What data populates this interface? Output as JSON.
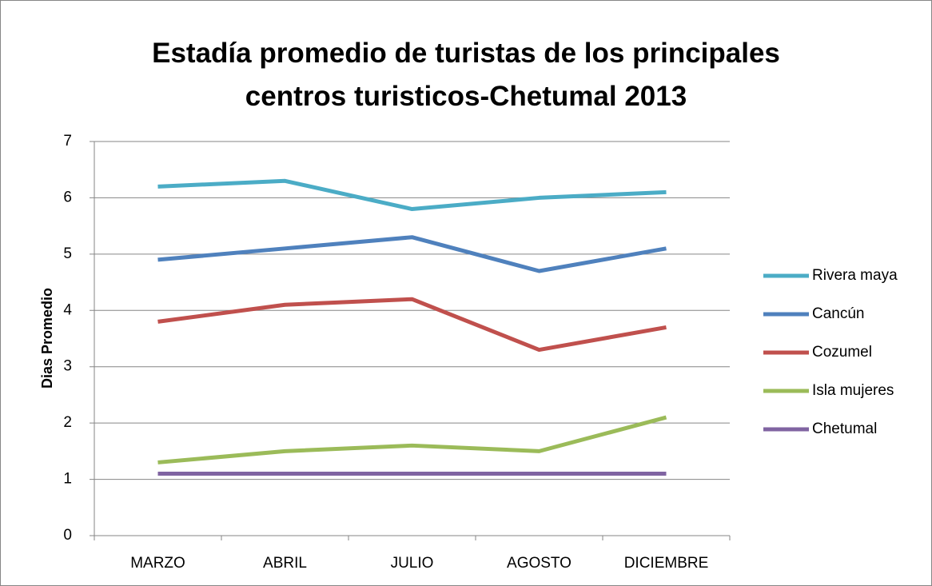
{
  "chart_data": {
    "type": "line",
    "title": "Estadía promedio de turistas de los principales centros turisticos-Chetumal 2013",
    "y_label": "Dias Promedio",
    "categories": [
      "MARZO",
      "ABRIL",
      "JULIO",
      "AGOSTO",
      "DICIEMBRE"
    ],
    "series": [
      {
        "name": "Rivera maya",
        "color": "#4bacc6",
        "values": [
          6.2,
          6.3,
          5.8,
          6.0,
          6.1
        ]
      },
      {
        "name": "Cancún",
        "color": "#4f81bd",
        "values": [
          4.9,
          5.1,
          5.3,
          4.7,
          5.1
        ]
      },
      {
        "name": "Cozumel",
        "color": "#c0504d",
        "values": [
          3.8,
          4.1,
          4.2,
          3.3,
          3.7
        ]
      },
      {
        "name": "Isla mujeres",
        "color": "#9bbb59",
        "values": [
          1.3,
          1.5,
          1.6,
          1.5,
          2.1
        ]
      },
      {
        "name": "Chetumal",
        "color": "#8064a2",
        "values": [
          1.1,
          1.1,
          1.1,
          1.1,
          1.1
        ]
      }
    ],
    "ylim": [
      0,
      7
    ],
    "yticks": [
      0,
      1,
      2,
      3,
      4,
      5,
      6,
      7
    ],
    "grid": true,
    "legend": "right"
  }
}
